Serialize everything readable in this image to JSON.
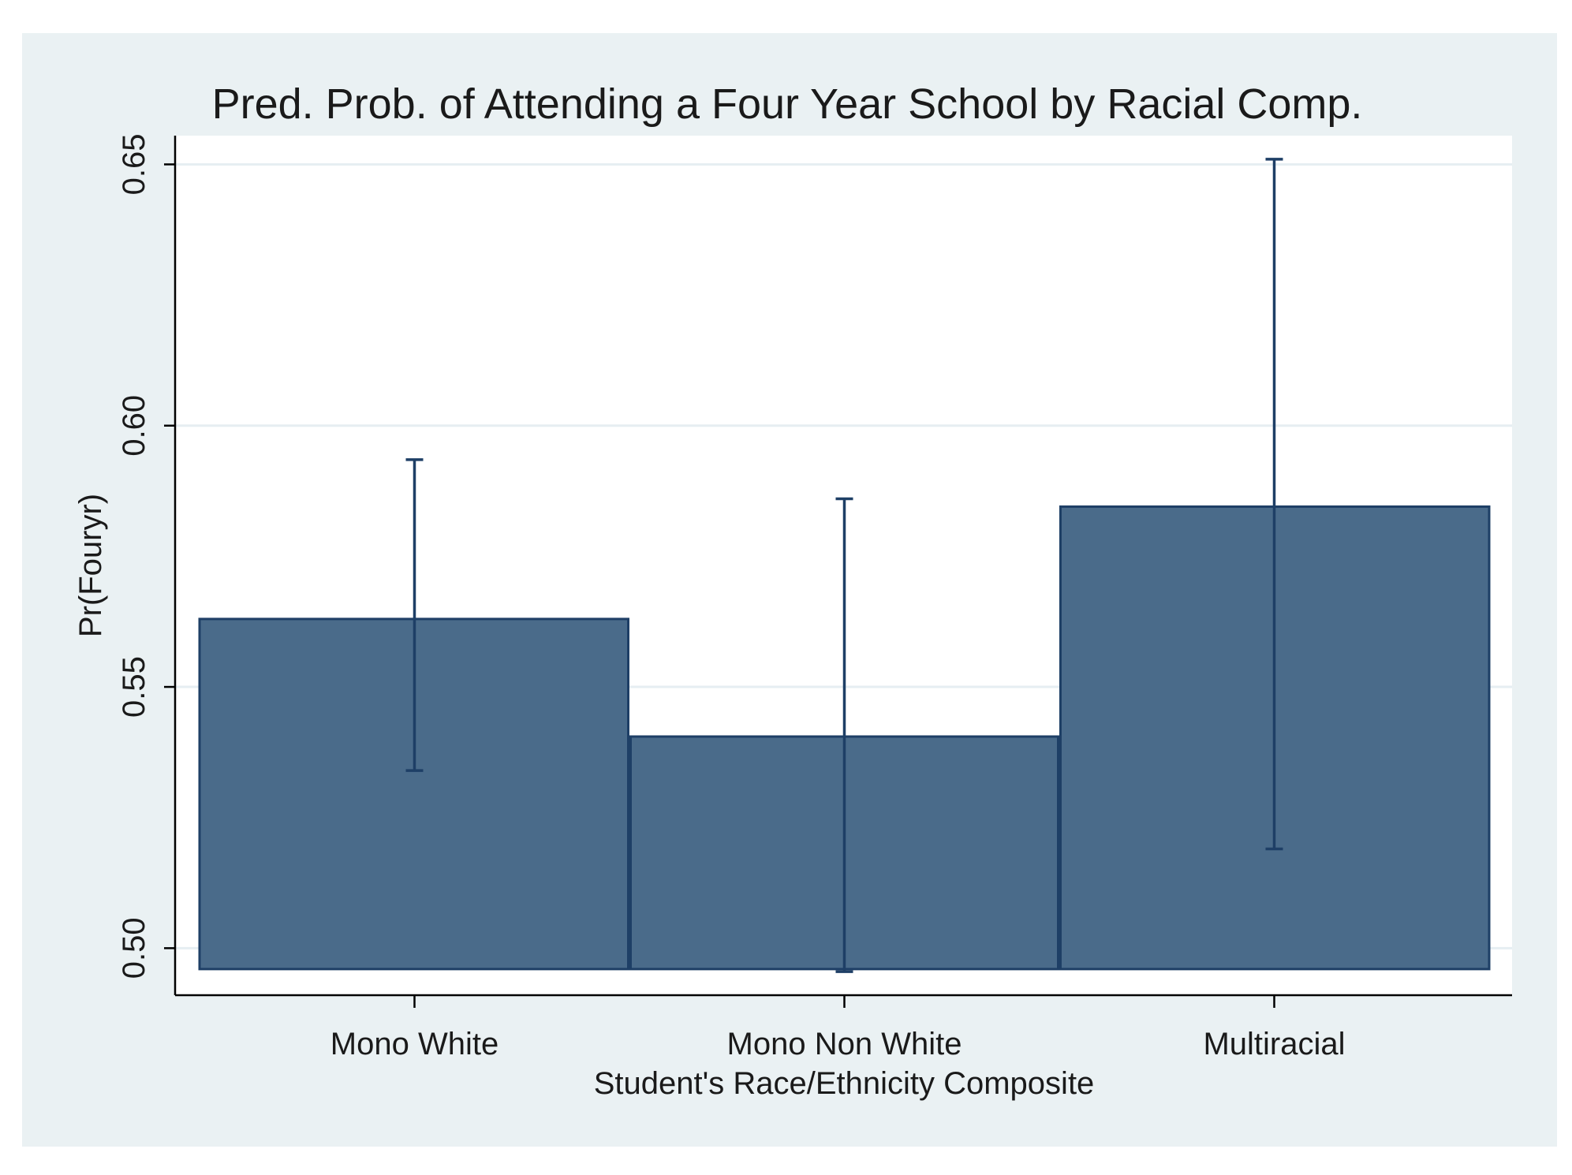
{
  "colors": {
    "outer_background": "#eaf1f3",
    "plot_background": "#ffffff",
    "bar_fill": "#4a6b8a",
    "bar_stroke": "#1e3f66",
    "error_bar": "#1e3f66",
    "gridline": "#e6eef2",
    "axis": "#000000",
    "text": "#1a1a1a"
  },
  "chart_data": {
    "type": "bar",
    "title": "Pred. Prob. of Attending a Four Year School by Racial Comp.",
    "xlabel": "Student's Race/Ethnicity Composite",
    "ylabel": "Pr(Fouryr)",
    "categories": [
      "Mono White",
      "Mono Non White",
      "Multiracial"
    ],
    "values": [
      0.563,
      0.5405,
      0.5845
    ],
    "ci_lower": [
      0.534,
      0.4955,
      0.519
    ],
    "ci_upper": [
      0.5935,
      0.586,
      0.651
    ],
    "bar_base": 0.496,
    "ylim": [
      0.491,
      0.6555
    ],
    "yticks": [
      0.5,
      0.55,
      0.6,
      0.65
    ],
    "ytick_labels": [
      "0.50",
      "0.55",
      "0.60",
      "0.65"
    ],
    "grid": true,
    "legend": "none"
  }
}
